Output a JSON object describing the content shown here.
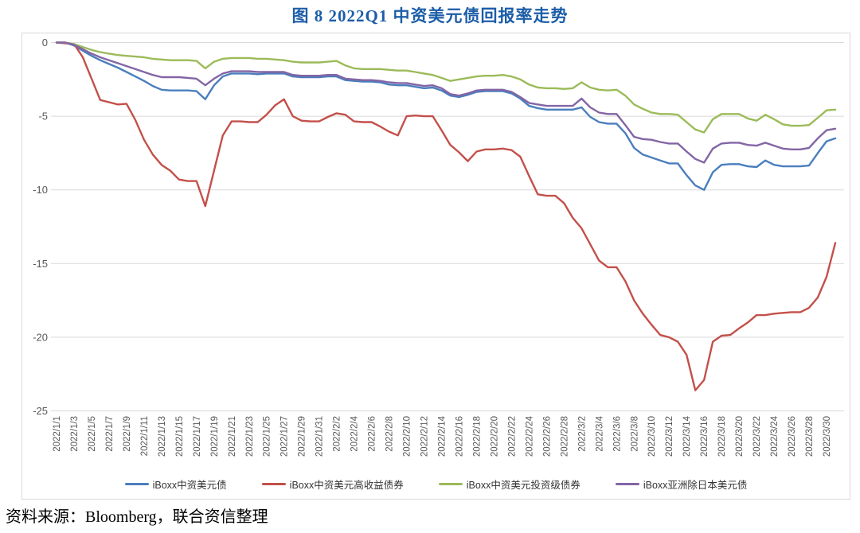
{
  "source": "资料来源：Bloomberg，联合资信整理",
  "colors": {
    "title_text": "#1c5da8",
    "axis_text": "#595959",
    "gridline": "#d9d9d9",
    "chart_border": "#d9d9d9",
    "legend_text": "#333333",
    "series_blue": "#4a7ebd",
    "series_red": "#c3504a",
    "series_green": "#9bbb59",
    "series_purple": "#8365a5"
  },
  "chart_data": {
    "type": "line",
    "title": "图 8  2022Q1 中资美元债回报率走势",
    "xlabel": "",
    "ylabel": "",
    "ylim": [
      -25,
      0
    ],
    "yticks": [
      0,
      -5,
      -10,
      -15,
      -20,
      -25
    ],
    "grid": true,
    "legend_position": "bottom",
    "tick_step": 2,
    "x_tick_labels": [
      "2022/1/1",
      "2022/1/3",
      "2022/1/5",
      "2022/1/7",
      "2022/1/9",
      "2022/1/11",
      "2022/1/13",
      "2022/1/15",
      "2022/1/17",
      "2022/1/19",
      "2022/1/21",
      "2022/1/23",
      "2022/1/25",
      "2022/1/27",
      "2022/1/29",
      "2022/1/31",
      "2022/2/2",
      "2022/2/4",
      "2022/2/6",
      "2022/2/8",
      "2022/2/10",
      "2022/2/12",
      "2022/2/14",
      "2022/2/16",
      "2022/2/18",
      "2022/2/20",
      "2022/2/22",
      "2022/2/24",
      "2022/2/26",
      "2022/2/28",
      "2022/3/2",
      "2022/3/4",
      "2022/3/6",
      "2022/3/8",
      "2022/3/10",
      "2022/3/12",
      "2022/3/14",
      "2022/3/16",
      "2022/3/18",
      "2022/3/20",
      "2022/3/22",
      "2022/3/24",
      "2022/3/26",
      "2022/3/28",
      "2022/3/30"
    ],
    "series": [
      {
        "name": "iBoxx中资美元债",
        "color": "#4a7ebd",
        "values": [
          0,
          0,
          -0.2,
          -0.55,
          -0.9,
          -1.2,
          -1.45,
          -1.7,
          -2,
          -2.3,
          -2.6,
          -2.95,
          -3.2,
          -3.25,
          -3.25,
          -3.25,
          -3.3,
          -3.85,
          -2.9,
          -2.3,
          -2.1,
          -2.1,
          -2.1,
          -2.15,
          -2.1,
          -2.1,
          -2.1,
          -2.3,
          -2.35,
          -2.35,
          -2.35,
          -2.3,
          -2.3,
          -2.55,
          -2.6,
          -2.65,
          -2.65,
          -2.7,
          -2.85,
          -2.9,
          -2.9,
          -3,
          -3.1,
          -3.05,
          -3.25,
          -3.6,
          -3.7,
          -3.55,
          -3.35,
          -3.3,
          -3.3,
          -3.3,
          -3.45,
          -3.8,
          -4.3,
          -4.45,
          -4.55,
          -4.55,
          -4.55,
          -4.55,
          -4.4,
          -5.05,
          -5.4,
          -5.5,
          -5.5,
          -6.15,
          -7.15,
          -7.6,
          -7.8,
          -8,
          -8.2,
          -8.2,
          -9,
          -9.7,
          -10,
          -8.8,
          -8.3,
          -8.25,
          -8.25,
          -8.4,
          -8.45,
          -8,
          -8.3,
          -8.4,
          -8.4,
          -8.4,
          -8.35,
          -7.5,
          -6.7,
          -6.5
        ]
      },
      {
        "name": "iBoxx中资美元高收益债券",
        "color": "#c3504a",
        "values": [
          0,
          -0.05,
          -0.1,
          -1,
          -2.45,
          -3.9,
          -4.05,
          -4.2,
          -4.15,
          -5.25,
          -6.6,
          -7.6,
          -8.3,
          -8.7,
          -9.3,
          -9.4,
          -9.4,
          -11.1,
          -8.7,
          -6.3,
          -5.35,
          -5.35,
          -5.4,
          -5.4,
          -4.9,
          -4.25,
          -3.85,
          -5,
          -5.3,
          -5.35,
          -5.35,
          -5.05,
          -4.8,
          -4.9,
          -5.35,
          -5.4,
          -5.4,
          -5.7,
          -6.05,
          -6.3,
          -5,
          -4.95,
          -5,
          -5,
          -5.95,
          -6.95,
          -7.45,
          -8.05,
          -7.4,
          -7.25,
          -7.25,
          -7.2,
          -7.3,
          -7.75,
          -9.05,
          -10.3,
          -10.4,
          -10.4,
          -10.9,
          -11.9,
          -12.6,
          -13.7,
          -14.8,
          -15.25,
          -15.25,
          -16.2,
          -17.5,
          -18.4,
          -19.15,
          -19.85,
          -20,
          -20.3,
          -21.2,
          -23.6,
          -22.9,
          -20.3,
          -19.9,
          -19.85,
          -19.4,
          -19,
          -18.5,
          -18.5,
          -18.4,
          -18.35,
          -18.3,
          -18.3,
          -18,
          -17.3,
          -15.9,
          -13.6
        ]
      },
      {
        "name": "iBoxx中资美元投资级债券",
        "color": "#9bbb59",
        "values": [
          0,
          0,
          -0.1,
          -0.3,
          -0.5,
          -0.65,
          -0.75,
          -0.85,
          -0.9,
          -0.95,
          -1,
          -1.1,
          -1.15,
          -1.2,
          -1.2,
          -1.2,
          -1.25,
          -1.75,
          -1.3,
          -1.1,
          -1.05,
          -1.05,
          -1.05,
          -1.1,
          -1.1,
          -1.15,
          -1.2,
          -1.3,
          -1.35,
          -1.35,
          -1.35,
          -1.3,
          -1.25,
          -1.55,
          -1.75,
          -1.8,
          -1.8,
          -1.8,
          -1.85,
          -1.9,
          -1.9,
          -2,
          -2.1,
          -2.2,
          -2.4,
          -2.6,
          -2.5,
          -2.4,
          -2.3,
          -2.25,
          -2.25,
          -2.2,
          -2.3,
          -2.5,
          -2.85,
          -3.05,
          -3.1,
          -3.1,
          -3.15,
          -3.1,
          -2.7,
          -3.05,
          -3.2,
          -3.25,
          -3.2,
          -3.6,
          -4.2,
          -4.5,
          -4.75,
          -4.85,
          -4.85,
          -4.9,
          -5.4,
          -5.9,
          -6.1,
          -5.2,
          -4.85,
          -4.85,
          -4.85,
          -5.15,
          -5.3,
          -4.9,
          -5.2,
          -5.55,
          -5.65,
          -5.65,
          -5.6,
          -5.1,
          -4.6,
          -4.55
        ]
      },
      {
        "name": "iBoxx亚洲除日本美元债",
        "color": "#8365a5",
        "values": [
          0,
          0,
          -0.15,
          -0.45,
          -0.75,
          -1,
          -1.2,
          -1.4,
          -1.6,
          -1.8,
          -2,
          -2.2,
          -2.35,
          -2.35,
          -2.35,
          -2.4,
          -2.45,
          -2.9,
          -2.45,
          -2.1,
          -1.95,
          -1.95,
          -1.95,
          -2,
          -2,
          -2,
          -2,
          -2.2,
          -2.25,
          -2.25,
          -2.25,
          -2.2,
          -2.2,
          -2.45,
          -2.5,
          -2.55,
          -2.55,
          -2.6,
          -2.7,
          -2.75,
          -2.75,
          -2.85,
          -2.95,
          -2.9,
          -3.1,
          -3.5,
          -3.6,
          -3.45,
          -3.25,
          -3.2,
          -3.2,
          -3.2,
          -3.35,
          -3.7,
          -4.1,
          -4.2,
          -4.3,
          -4.3,
          -4.3,
          -4.3,
          -3.8,
          -4.4,
          -4.75,
          -4.85,
          -4.85,
          -5.6,
          -6.4,
          -6.55,
          -6.6,
          -6.75,
          -6.85,
          -6.85,
          -7.4,
          -7.9,
          -8.15,
          -7.2,
          -6.85,
          -6.8,
          -6.8,
          -6.95,
          -7,
          -6.8,
          -7,
          -7.2,
          -7.25,
          -7.25,
          -7.15,
          -6.5,
          -5.95,
          -5.85
        ]
      }
    ]
  }
}
